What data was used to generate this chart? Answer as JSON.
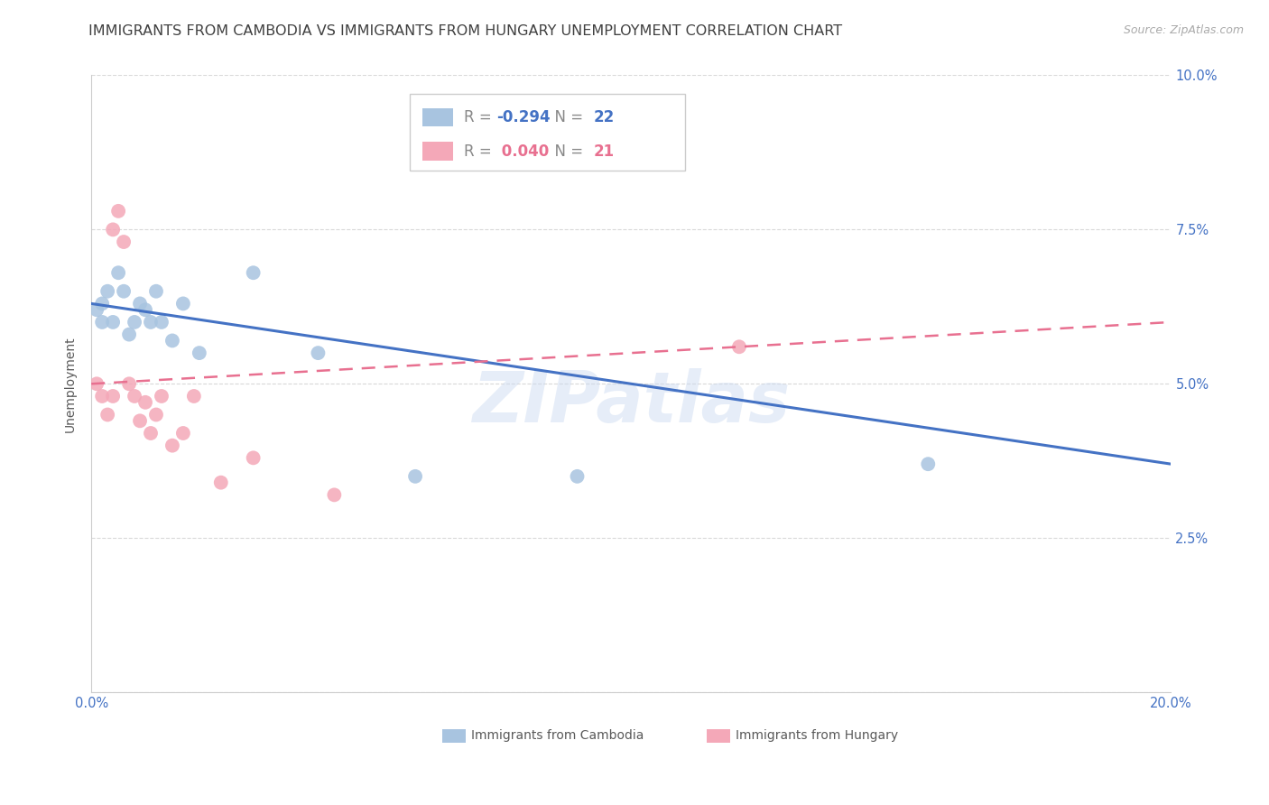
{
  "title": "IMMIGRANTS FROM CAMBODIA VS IMMIGRANTS FROM HUNGARY UNEMPLOYMENT CORRELATION CHART",
  "source": "Source: ZipAtlas.com",
  "ylabel_label": "Unemployment",
  "watermark": "ZIPatlas",
  "xlim": [
    0.0,
    0.2
  ],
  "ylim": [
    0.0,
    0.1
  ],
  "xtick_positions": [
    0.0,
    0.05,
    0.1,
    0.15,
    0.2
  ],
  "xtick_labels": [
    "0.0%",
    "",
    "",
    "",
    "20.0%"
  ],
  "ytick_positions": [
    0.0,
    0.025,
    0.05,
    0.075,
    0.1
  ],
  "ytick_labels": [
    "",
    "2.5%",
    "5.0%",
    "7.5%",
    "10.0%"
  ],
  "cambodia_R": -0.294,
  "cambodia_N": 22,
  "hungary_R": 0.04,
  "hungary_N": 21,
  "cambodia_color": "#a8c4e0",
  "hungary_color": "#f4a8b8",
  "cambodia_line_color": "#4472c4",
  "hungary_line_color": "#e87090",
  "background_color": "#ffffff",
  "grid_color": "#d9d9d9",
  "title_color": "#404040",
  "axis_label_color": "#595959",
  "tick_label_color": "#4472c4",
  "cambodia_x": [
    0.001,
    0.002,
    0.002,
    0.003,
    0.004,
    0.005,
    0.006,
    0.007,
    0.008,
    0.009,
    0.01,
    0.011,
    0.012,
    0.013,
    0.015,
    0.017,
    0.02,
    0.03,
    0.042,
    0.06,
    0.09,
    0.155
  ],
  "cambodia_y": [
    0.062,
    0.06,
    0.063,
    0.065,
    0.06,
    0.068,
    0.065,
    0.058,
    0.06,
    0.063,
    0.062,
    0.06,
    0.065,
    0.06,
    0.057,
    0.063,
    0.055,
    0.068,
    0.055,
    0.035,
    0.035,
    0.037
  ],
  "hungary_x": [
    0.001,
    0.002,
    0.003,
    0.004,
    0.004,
    0.005,
    0.006,
    0.007,
    0.008,
    0.009,
    0.01,
    0.011,
    0.012,
    0.013,
    0.015,
    0.017,
    0.019,
    0.024,
    0.03,
    0.045,
    0.12
  ],
  "hungary_y": [
    0.05,
    0.048,
    0.045,
    0.048,
    0.075,
    0.078,
    0.073,
    0.05,
    0.048,
    0.044,
    0.047,
    0.042,
    0.045,
    0.048,
    0.04,
    0.042,
    0.048,
    0.034,
    0.038,
    0.032,
    0.056
  ],
  "cam_line_y0": 0.063,
  "cam_line_y1": 0.037,
  "hun_line_y0": 0.05,
  "hun_line_y1": 0.06,
  "marker_size": 130,
  "title_fontsize": 11.5,
  "axis_label_fontsize": 10,
  "tick_fontsize": 10.5,
  "legend_fontsize": 12,
  "source_fontsize": 9
}
